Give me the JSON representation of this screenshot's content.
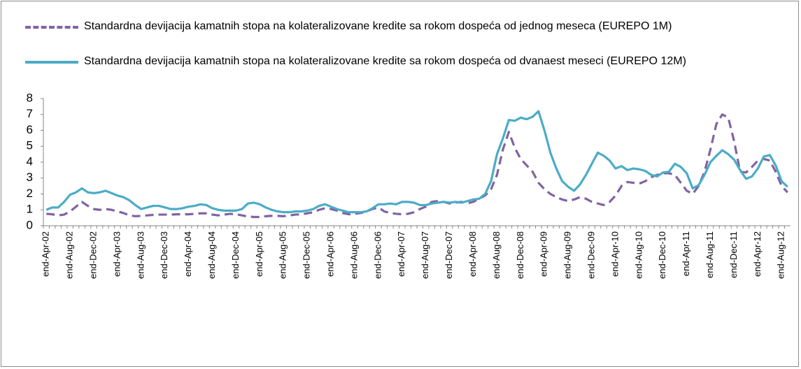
{
  "chart_data": {
    "type": "line",
    "categories": [
      "end-Apr-02",
      null,
      null,
      null,
      "end-Aug-02",
      null,
      null,
      null,
      "end-Dec-02",
      null,
      null,
      null,
      "end-Apr-03",
      null,
      null,
      null,
      "end-Aug-03",
      null,
      null,
      null,
      "end-Dec-03",
      null,
      null,
      null,
      "end-Apr-04",
      null,
      null,
      null,
      "end-Aug-04",
      null,
      null,
      null,
      "end-Dec-04",
      null,
      null,
      null,
      "end-Apr-05",
      null,
      null,
      null,
      "end-Aug-05",
      null,
      null,
      null,
      "end-Dec-05",
      null,
      null,
      null,
      "end-Apr-06",
      null,
      null,
      null,
      "end-Aug-06",
      null,
      null,
      null,
      "end-Dec-06",
      null,
      null,
      null,
      "end-Apr-07",
      null,
      null,
      null,
      "end-Aug-07",
      null,
      null,
      null,
      "end-Dec-07",
      null,
      null,
      null,
      "end-Apr-08",
      null,
      null,
      null,
      "end-Aug-08",
      null,
      null,
      null,
      "end-Dec-08",
      null,
      null,
      null,
      "end-Apr-09",
      null,
      null,
      null,
      "end-Aug-09",
      null,
      null,
      null,
      "end-Dec-09",
      null,
      null,
      null,
      "end-Apr-10",
      null,
      null,
      null,
      "end-Aug-10",
      null,
      null,
      null,
      "end-Dec-10",
      null,
      null,
      null,
      "end-Apr-11",
      null,
      null,
      null,
      "end-Aug-11",
      null,
      null,
      null,
      "end-Dec-11",
      null,
      null,
      null,
      "end-Apr-12",
      null,
      null,
      null,
      "end-Aug-12",
      null
    ],
    "series": [
      {
        "name": "Standardna devijacija kamatnih stopa na kolateralizovane kredite sa rokom dospeća od jednog meseca (EUREPO 1M)",
        "color": "#8064a2",
        "dash": true,
        "values": [
          0.75,
          0.72,
          0.65,
          0.7,
          0.9,
          1.2,
          1.5,
          1.25,
          1.05,
          1.0,
          1.05,
          1.0,
          0.9,
          0.8,
          0.65,
          0.6,
          0.62,
          0.65,
          0.68,
          0.7,
          0.7,
          0.7,
          0.72,
          0.72,
          0.72,
          0.75,
          0.78,
          0.78,
          0.7,
          0.65,
          0.7,
          0.75,
          0.72,
          0.65,
          0.58,
          0.55,
          0.55,
          0.6,
          0.62,
          0.62,
          0.6,
          0.65,
          0.7,
          0.72,
          0.78,
          0.85,
          1.0,
          1.1,
          1.05,
          0.95,
          0.8,
          0.72,
          0.75,
          0.8,
          0.9,
          1.05,
          1.15,
          0.9,
          0.8,
          0.75,
          0.72,
          0.75,
          0.85,
          1.05,
          1.2,
          1.5,
          1.55,
          1.5,
          1.4,
          1.45,
          1.5,
          1.4,
          1.5,
          1.7,
          1.9,
          2.3,
          3.2,
          4.8,
          5.9,
          4.9,
          4.2,
          3.8,
          3.4,
          2.7,
          2.3,
          2.0,
          1.8,
          1.65,
          1.55,
          1.65,
          1.8,
          1.7,
          1.5,
          1.4,
          1.3,
          1.5,
          1.9,
          2.5,
          2.75,
          2.7,
          2.65,
          2.8,
          3.05,
          3.2,
          3.3,
          3.3,
          3.2,
          2.7,
          2.2,
          2.0,
          2.5,
          3.4,
          4.8,
          6.4,
          7.0,
          6.8,
          5.3,
          3.4,
          3.35,
          3.7,
          4.1,
          4.2,
          4.1,
          3.4,
          2.5,
          2.1
        ]
      },
      {
        "name": "Standardna devijacija kamatnih stopa na kolateralizovane kredite sa rokom dospeća od dvanaest meseci (EUREPO 12M)",
        "color": "#4bacc6",
        "dash": false,
        "values": [
          1.0,
          1.15,
          1.15,
          1.5,
          1.95,
          2.1,
          2.35,
          2.1,
          2.05,
          2.1,
          2.2,
          2.05,
          1.9,
          1.8,
          1.6,
          1.3,
          1.05,
          1.15,
          1.25,
          1.25,
          1.15,
          1.05,
          1.05,
          1.1,
          1.2,
          1.25,
          1.35,
          1.3,
          1.1,
          1.0,
          0.95,
          0.95,
          0.95,
          1.05,
          1.4,
          1.45,
          1.35,
          1.15,
          1.0,
          0.9,
          0.85,
          0.85,
          0.9,
          0.9,
          0.95,
          1.05,
          1.25,
          1.35,
          1.2,
          1.05,
          0.95,
          0.85,
          0.85,
          0.85,
          0.9,
          1.1,
          1.35,
          1.35,
          1.4,
          1.35,
          1.5,
          1.5,
          1.45,
          1.3,
          1.3,
          1.4,
          1.45,
          1.5,
          1.45,
          1.5,
          1.45,
          1.55,
          1.65,
          1.7,
          2.0,
          2.8,
          4.5,
          5.5,
          6.65,
          6.6,
          6.8,
          6.7,
          6.85,
          7.2,
          6.0,
          4.6,
          3.6,
          2.8,
          2.45,
          2.2,
          2.6,
          3.2,
          3.9,
          4.6,
          4.4,
          4.1,
          3.6,
          3.75,
          3.5,
          3.6,
          3.55,
          3.45,
          3.2,
          3.1,
          3.35,
          3.4,
          3.9,
          3.7,
          3.3,
          2.35,
          2.55,
          3.2,
          4.0,
          4.4,
          4.75,
          4.5,
          4.15,
          3.5,
          2.95,
          3.1,
          3.6,
          4.35,
          4.45,
          3.8,
          2.8,
          2.45
        ]
      }
    ],
    "ylim": [
      0,
      8
    ],
    "yticks": [
      0,
      1,
      2,
      3,
      4,
      5,
      6,
      7,
      8
    ],
    "grid": false
  }
}
